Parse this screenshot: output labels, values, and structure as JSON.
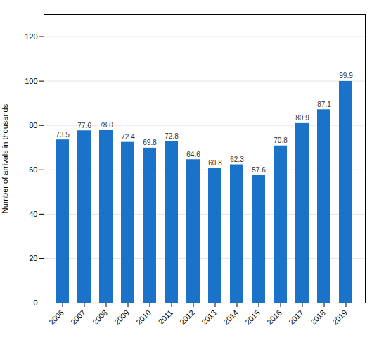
{
  "chart_data": {
    "type": "bar",
    "categories": [
      "2006",
      "2007",
      "2008",
      "2009",
      "2010",
      "2011",
      "2012",
      "2013",
      "2014",
      "2015",
      "2016",
      "2017",
      "2018",
      "2019"
    ],
    "values": [
      73.5,
      77.6,
      78.0,
      72.4,
      69.8,
      72.8,
      64.6,
      60.8,
      62.3,
      57.6,
      70.8,
      80.9,
      87.1,
      99.9
    ],
    "value_labels": [
      "73.5",
      "77.6",
      "78.0",
      "72.4",
      "69.8",
      "72.8",
      "64.6",
      "60.8",
      "62.3",
      "57.6",
      "70.8",
      "80.9",
      "87.1",
      "99.9"
    ],
    "color": "#1a73c8",
    "ylabel": "Number of arrivals in thousands",
    "ylim": [
      0,
      130
    ],
    "yticks": [
      0,
      20,
      40,
      60,
      80,
      100,
      120
    ],
    "grid": true,
    "data_labels": true
  }
}
